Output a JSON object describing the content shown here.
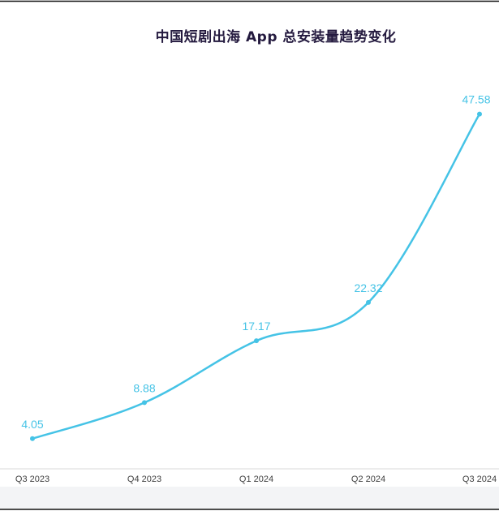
{
  "chart_data": {
    "type": "line",
    "title": "中国短剧出海 App 总安装量趋势变化",
    "categories": [
      "Q3 2023",
      "Q4 2023",
      "Q1 2024",
      "Q2 2024",
      "Q3 2024"
    ],
    "series": [
      {
        "values": [
          4.05,
          8.88,
          17.17,
          22.32,
          47.58
        ],
        "labels": [
          "4.05",
          "8.88",
          "17.17",
          "22.32",
          "47.58"
        ]
      }
    ],
    "ylim": [
      0,
      52
    ],
    "grid": false,
    "line_color": "#45c3e6",
    "axis_color": "#d9d9d9",
    "title_color": "#241a3f"
  }
}
